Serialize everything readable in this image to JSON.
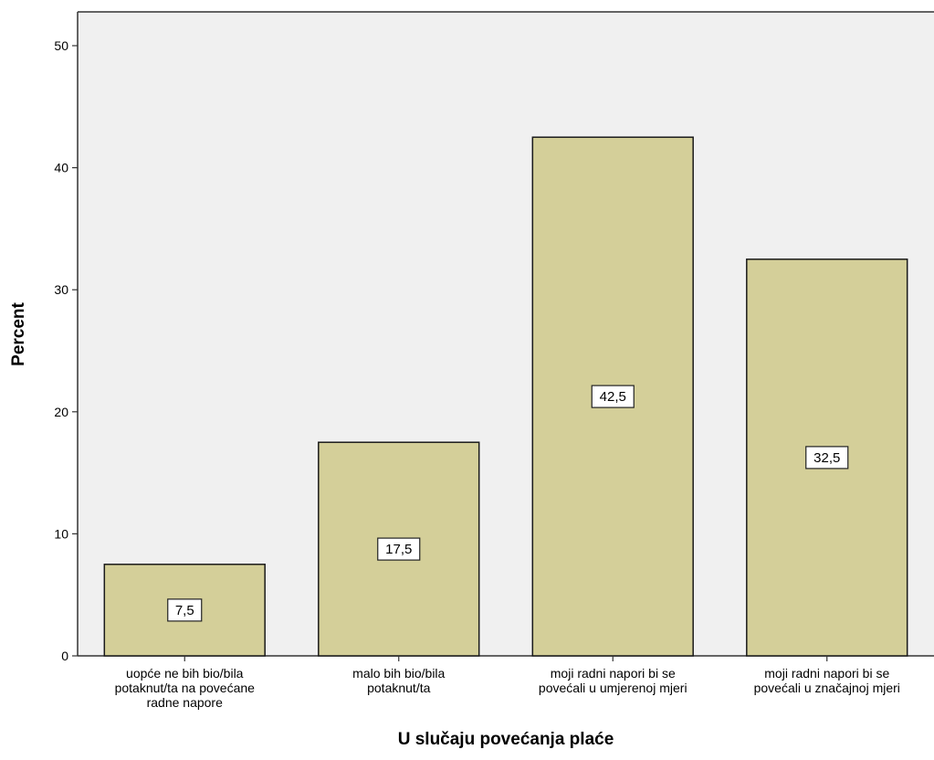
{
  "chart_data": {
    "type": "bar",
    "categories": [
      [
        "uopće ne bih bio/bila",
        "potaknut/ta na povećane",
        "radne napore"
      ],
      [
        "malo bih bio/bila",
        "potaknut/ta"
      ],
      [
        "moji radni napori bi se",
        "povećali u umjerenoj mjeri"
      ],
      [
        "moji radni napori bi se",
        "povećali u značajnoj mjeri"
      ]
    ],
    "values": [
      7.5,
      17.5,
      42.5,
      32.5
    ],
    "data_labels": [
      "7,5",
      "17,5",
      "42,5",
      "32,5"
    ],
    "title": "",
    "xlabel": "U slučaju povećanja plaće",
    "ylabel": "Percent",
    "ylim": [
      0,
      50
    ],
    "yticks": [
      0,
      10,
      20,
      30,
      40,
      50
    ],
    "grid": false,
    "colors": {
      "bar_fill": "#d4cf99",
      "bar_stroke": "#1a1a1a",
      "plot_bg": "#f0f0f0",
      "axis": "#333333"
    }
  }
}
